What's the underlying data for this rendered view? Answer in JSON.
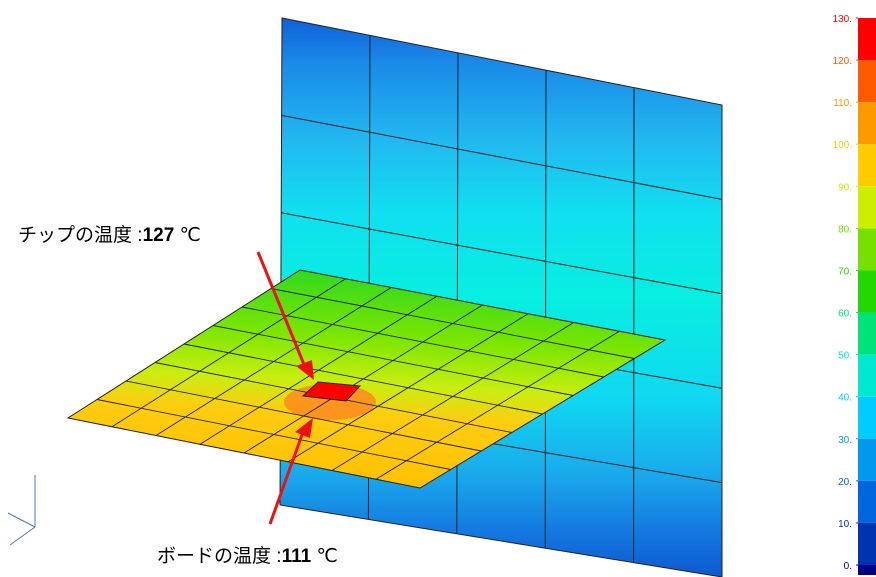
{
  "annotations": [
    {
      "label": "チップの温度 :",
      "value": 127,
      "unit": "℃"
    },
    {
      "label": "ボードの温度 :",
      "value": 111,
      "unit": "℃"
    }
  ],
  "legend": {
    "ticks": [
      {
        "value": 130,
        "label": "130."
      },
      {
        "value": 120,
        "label": "120."
      },
      {
        "value": 110,
        "label": "110."
      },
      {
        "value": 100,
        "label": "100."
      },
      {
        "value": 90,
        "label": "90."
      },
      {
        "value": 80,
        "label": "80."
      },
      {
        "value": 70,
        "label": "70."
      },
      {
        "value": 60,
        "label": "60."
      },
      {
        "value": 50,
        "label": "50."
      },
      {
        "value": 40,
        "label": "40."
      },
      {
        "value": 30,
        "label": "30."
      },
      {
        "value": 20,
        "label": "20."
      },
      {
        "value": 10,
        "label": "10."
      },
      {
        "value": 0,
        "label": "0."
      }
    ],
    "colors": [
      "#ff0000",
      "#ff5a00",
      "#ff9900",
      "#ffcc00",
      "#ccee00",
      "#77e000",
      "#22d800",
      "#00e27a",
      "#00e8d0",
      "#00ccff",
      "#0099ee",
      "#0066dd",
      "#0033b0",
      "#000088"
    ]
  }
}
